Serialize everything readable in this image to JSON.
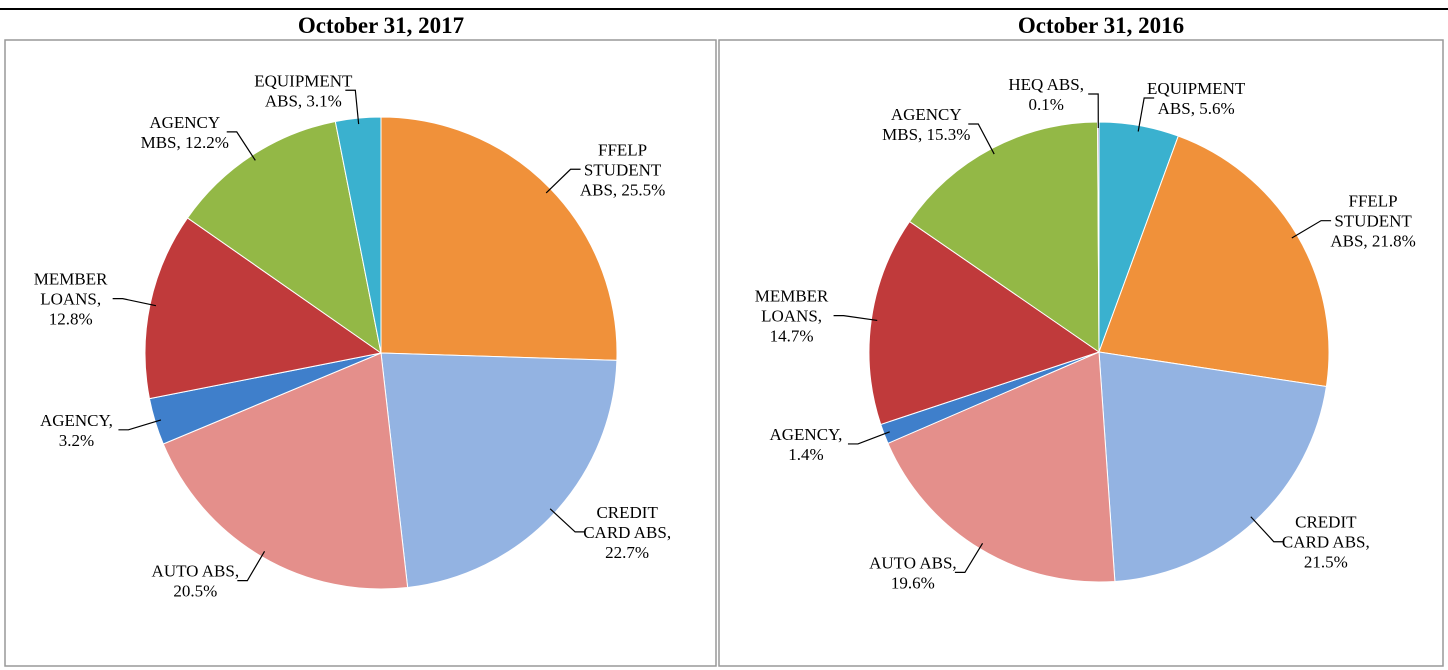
{
  "chart_data": [
    {
      "type": "pie",
      "title": "October 31, 2017",
      "values": [
        25.5,
        22.7,
        20.5,
        3.2,
        12.8,
        12.2,
        3.1
      ],
      "value_labels": [
        "FFELP STUDENT ABS, 25.5%",
        "CREDIT CARD ABS, 22.7%",
        "AUTO ABS, 20.5%",
        "AGENCY, 3.2%",
        "MEMBER LOANS, 12.8%",
        "AGENCY MBS, 12.2%",
        "EQUIPMENT ABS, 3.1%"
      ],
      "colors": [
        "#f0913a",
        "#93b3e2",
        "#e48f8b",
        "#3f7fcb",
        "#c03a3b",
        "#93b846",
        "#3ab1cf"
      ]
    },
    {
      "type": "pie",
      "title": "October 31, 2016",
      "values": [
        5.6,
        21.8,
        21.5,
        19.6,
        1.4,
        14.7,
        15.3,
        0.1
      ],
      "value_labels": [
        "EQUIPMENT ABS, 5.6%",
        "FFELP STUDENT ABS, 21.8%",
        "CREDIT CARD ABS, 21.5%",
        "AUTO ABS, 19.6%",
        "AGENCY, 1.4%",
        "MEMBER LOANS, 14.7%",
        "AGENCY MBS, 15.3%",
        "HEQ ABS, 0.1%"
      ],
      "colors": [
        "#3ab1cf",
        "#f0913a",
        "#93b3e2",
        "#e48f8b",
        "#3f7fcb",
        "#c03a3b",
        "#93b846",
        "#7d5fa6"
      ]
    }
  ]
}
